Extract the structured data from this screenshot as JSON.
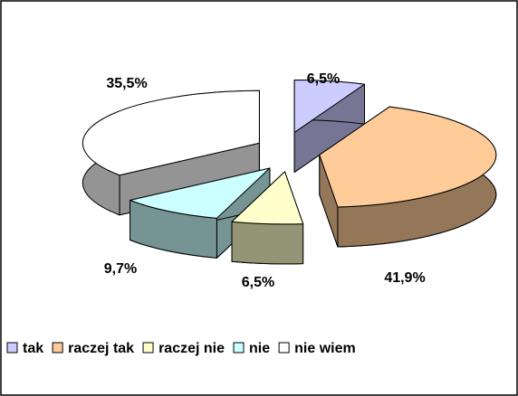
{
  "chart_data": {
    "type": "pie3d",
    "categories": [
      "tak",
      "raczej tak",
      "raczej nie",
      "nie",
      "nie wiem"
    ],
    "values": [
      6.5,
      41.9,
      6.5,
      9.7,
      35.5
    ],
    "value_labels": [
      "6,5%",
      "41,9%",
      "6,5%",
      "9,7%",
      "35,5%"
    ],
    "colors": [
      "#ccccff",
      "#ffcc99",
      "#ffffcc",
      "#ccffff",
      "#ffffff"
    ],
    "legend": "bottom"
  }
}
